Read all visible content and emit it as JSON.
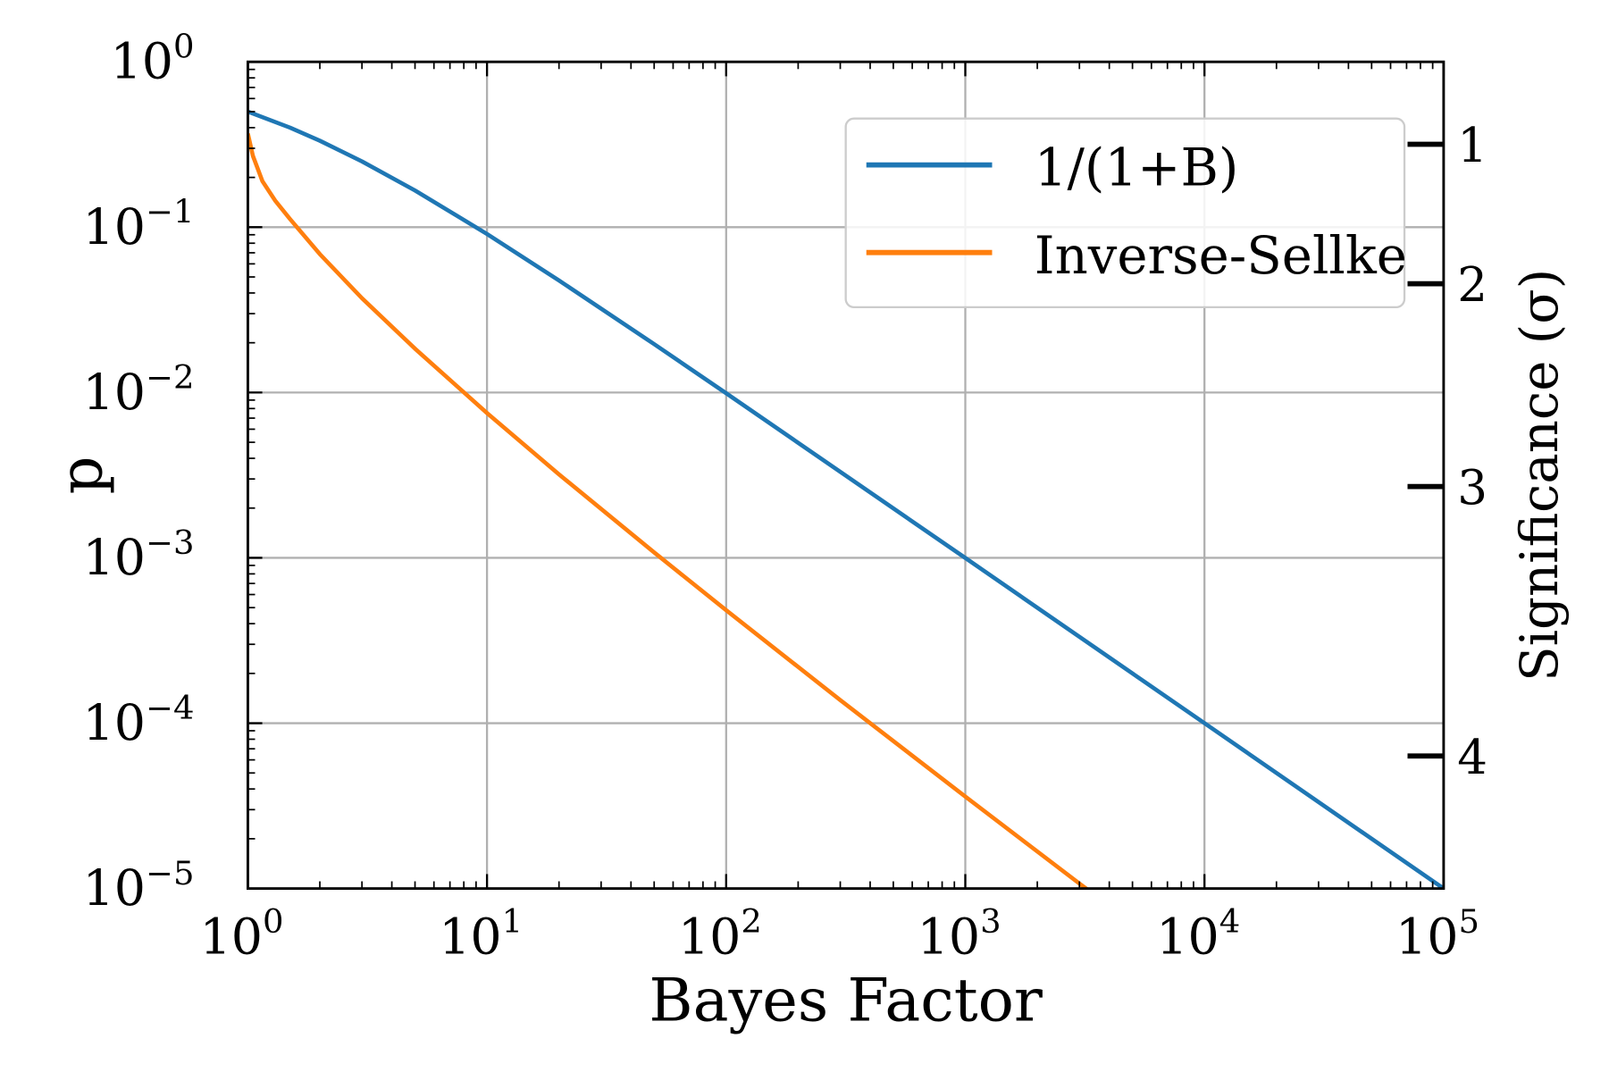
{
  "chart_data": {
    "type": "line",
    "xlabel": "Bayes Factor",
    "ylabel": "p",
    "y2label": "Significance (σ)",
    "xscale": "log",
    "yscale": "log",
    "xlim": [
      1,
      100000
    ],
    "ylim": [
      1e-05,
      1
    ],
    "grid": true,
    "legend_placement": "top-right",
    "x_ticks": [
      {
        "value": 1,
        "base": "10",
        "exp": "0"
      },
      {
        "value": 10,
        "base": "10",
        "exp": "1"
      },
      {
        "value": 100,
        "base": "10",
        "exp": "2"
      },
      {
        "value": 1000,
        "base": "10",
        "exp": "3"
      },
      {
        "value": 10000,
        "base": "10",
        "exp": "4"
      },
      {
        "value": 100000,
        "base": "10",
        "exp": "5"
      }
    ],
    "y_ticks": [
      {
        "value": 1,
        "base": "10",
        "exp": "0"
      },
      {
        "value": 0.1,
        "base": "10",
        "exp": "−1"
      },
      {
        "value": 0.01,
        "base": "10",
        "exp": "−2"
      },
      {
        "value": 0.001,
        "base": "10",
        "exp": "−3"
      },
      {
        "value": 0.0001,
        "base": "10",
        "exp": "−4"
      },
      {
        "value": 1e-05,
        "base": "10",
        "exp": "−5"
      }
    ],
    "y2_ticks": [
      {
        "label": "1",
        "p": 0.3173
      },
      {
        "label": "2",
        "p": 0.0455
      },
      {
        "label": "3",
        "p": 0.0027
      },
      {
        "label": "4",
        "p": 6.33e-05
      }
    ],
    "series": [
      {
        "name": "1/(1+B)",
        "color": "#1f77b4",
        "x": [
          1,
          1.5,
          2,
          3,
          5,
          10,
          20,
          50,
          100,
          1000,
          10000,
          100000
        ],
        "y": [
          0.5,
          0.4,
          0.3333,
          0.25,
          0.1667,
          0.0909,
          0.0476,
          0.0196,
          0.0099,
          0.000999,
          0.0001,
          1e-05
        ]
      },
      {
        "name": "Inverse-Sellke",
        "color": "#ff7f0e",
        "x": [
          1,
          1.05,
          1.15,
          1.3,
          1.5,
          2,
          3,
          5,
          10,
          20,
          50,
          100,
          300,
          1000,
          3000,
          3300
        ],
        "y": [
          0.368,
          0.27,
          0.19,
          0.145,
          0.112,
          0.0688,
          0.0372,
          0.0184,
          0.00752,
          0.0032,
          0.001078,
          0.000482,
          0.000138,
          3.6e-05,
          1.072e-05,
          9.67e-06
        ]
      }
    ]
  }
}
